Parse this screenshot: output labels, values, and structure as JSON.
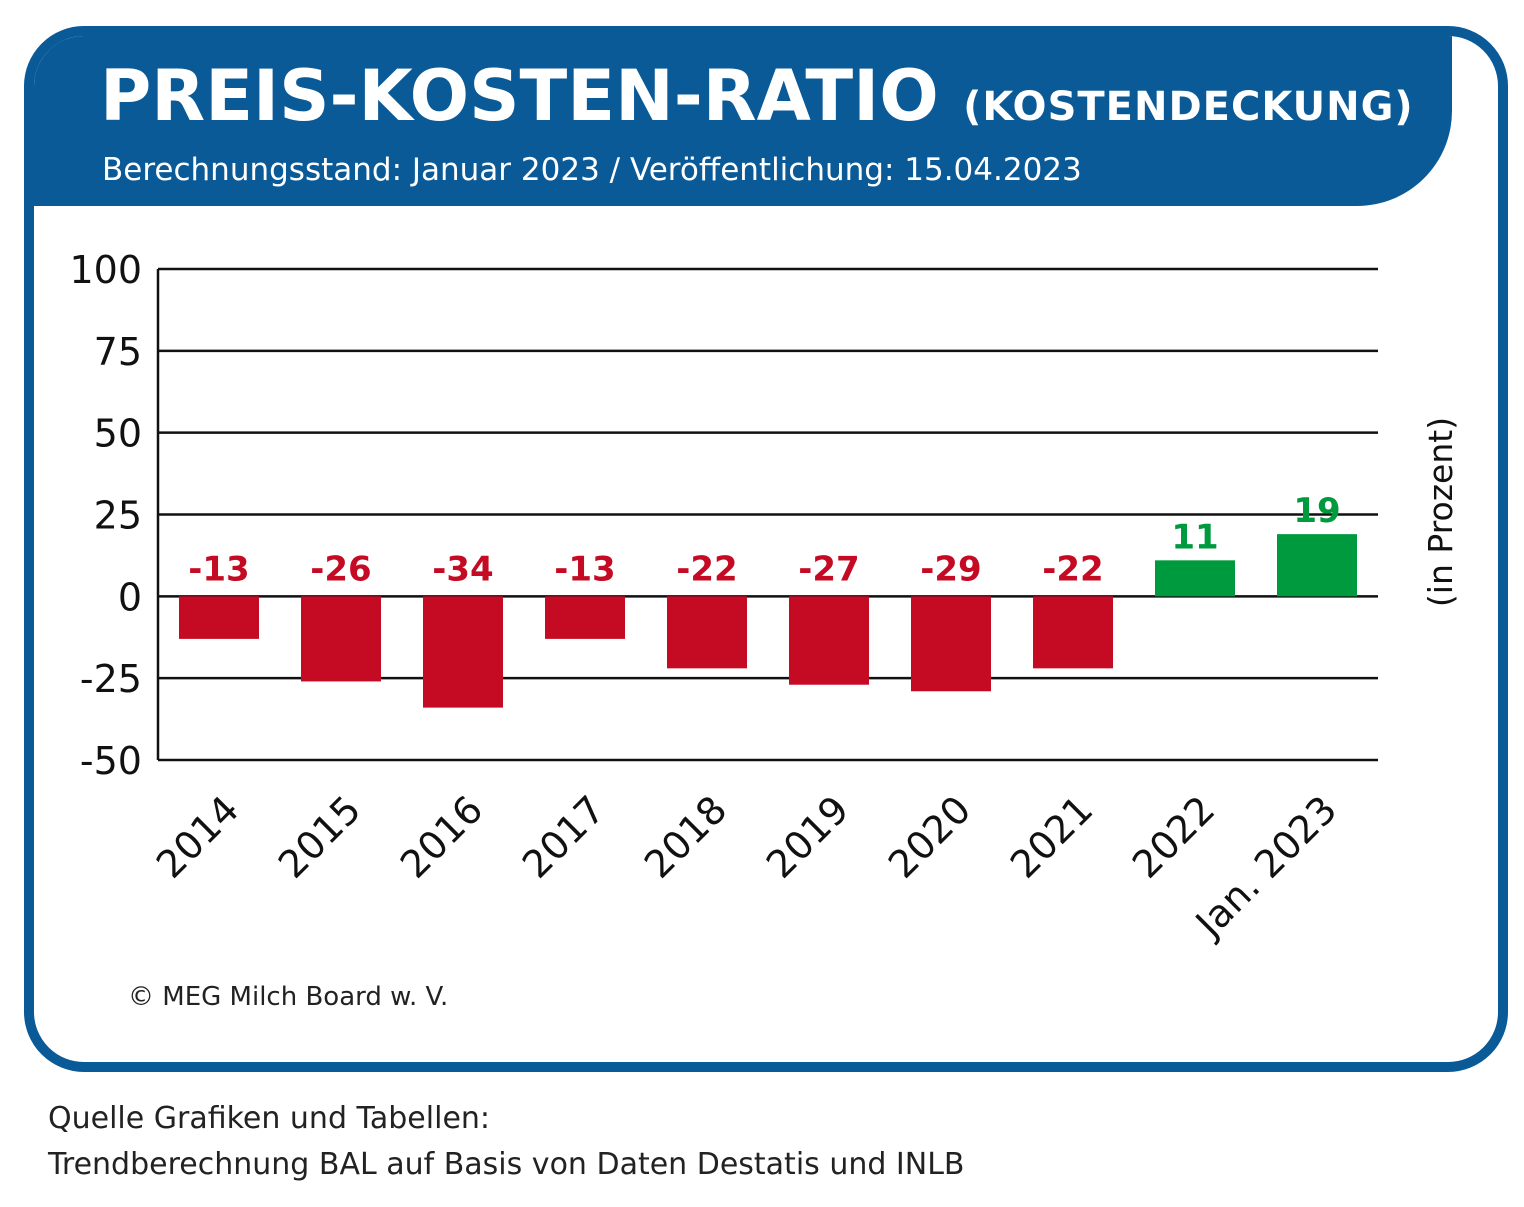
{
  "header": {
    "title_main": "PREIS-KOSTEN-RATIO",
    "title_sub": "(KOSTENDECKUNG)",
    "subtitle": "Berechnungsstand: Januar 2023 / Veröffentlichung: 15.04.2023"
  },
  "copyright": "© MEG Milch Board w. V.",
  "source": {
    "line1": "Quelle Grafiken und Tabellen:",
    "line2": "Trendberechnung BAL auf Basis von Daten Destatis und INLB"
  },
  "colors": {
    "brand_blue": "#0a5a98",
    "negative": "#c50b24",
    "positive": "#009a3e",
    "axis": "#111111"
  },
  "chart_data": {
    "type": "bar",
    "title": "PREIS-KOSTEN-RATIO (KOSTENDECKUNG)",
    "categories": [
      "2014",
      "2015",
      "2016",
      "2017",
      "2018",
      "2019",
      "2020",
      "2021",
      "2022",
      "Jan. 2023"
    ],
    "values": [
      -13,
      -26,
      -34,
      -13,
      -22,
      -27,
      -29,
      -22,
      11,
      19
    ],
    "value_labels": [
      "-13",
      "-26",
      "-34",
      "-13",
      "-22",
      "-27",
      "-29",
      "-22",
      "11",
      "19"
    ],
    "ylabel": "(in Prozent)",
    "xlabel": "",
    "ylim": [
      -50,
      100
    ],
    "yticks": [
      100,
      75,
      50,
      25,
      0,
      -25,
      -50
    ],
    "grid": true,
    "legend": "none"
  }
}
